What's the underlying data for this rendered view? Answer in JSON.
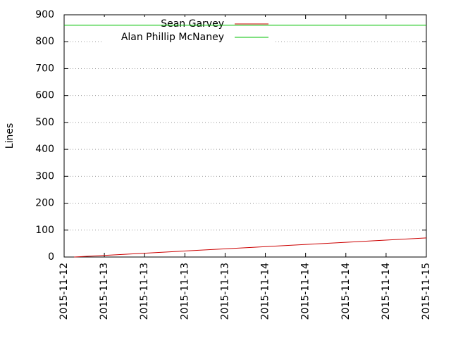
{
  "chart_data": {
    "type": "line",
    "y_label": "Lines",
    "x": [
      1.5,
      54
    ],
    "series": [
      {
        "name": "Sean Garvey",
        "color": "#cc0000",
        "x": [
          1.5,
          54
        ],
        "values": [
          0,
          71
        ]
      },
      {
        "name": "Alan Phillip McNaney",
        "color": "#00c000",
        "x": [
          0,
          54
        ],
        "values": [
          861,
          861
        ]
      }
    ],
    "xlim": [
      0,
      54
    ],
    "xticks": [
      {
        "value": 0,
        "label": "2015-11-12"
      },
      {
        "value": 6,
        "label": "2015-11-13"
      },
      {
        "value": 12,
        "label": "2015-11-13"
      },
      {
        "value": 18,
        "label": "2015-11-13"
      },
      {
        "value": 24,
        "label": "2015-11-13"
      },
      {
        "value": 30,
        "label": "2015-11-14"
      },
      {
        "value": 36,
        "label": "2015-11-14"
      },
      {
        "value": 42,
        "label": "2015-11-14"
      },
      {
        "value": 48,
        "label": "2015-11-14"
      },
      {
        "value": 54,
        "label": "2015-11-15"
      }
    ],
    "ylim": [
      0,
      900
    ],
    "yticks": [
      0,
      100,
      200,
      300,
      400,
      500,
      600,
      700,
      800,
      900
    ],
    "grid": true,
    "legend": "top"
  }
}
